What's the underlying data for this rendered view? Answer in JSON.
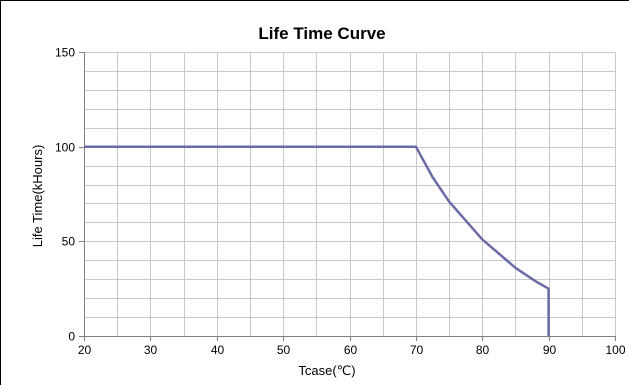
{
  "chart_data": {
    "type": "line",
    "title": "Life Time Curve",
    "xlabel": "Tcase(℃)",
    "ylabel": "Life Time(kHours)",
    "xlim": [
      20,
      100
    ],
    "ylim": [
      0,
      150
    ],
    "x_major_ticks": [
      "20",
      "30",
      "40",
      "50",
      "60",
      "70",
      "80",
      "90",
      "100"
    ],
    "y_major_ticks": [
      "0",
      "50",
      "100",
      "150"
    ],
    "x_minor_step": 5,
    "y_minor_step": 10,
    "grid": true,
    "legend": "none",
    "series": [
      {
        "color": "#6b6ba8",
        "points": [
          {
            "x": 20,
            "y": 100
          },
          {
            "x": 70,
            "y": 100
          },
          {
            "x": 72.5,
            "y": 84
          },
          {
            "x": 75,
            "y": 71
          },
          {
            "x": 80,
            "y": 51
          },
          {
            "x": 85,
            "y": 36
          },
          {
            "x": 88,
            "y": 29
          },
          {
            "x": 90,
            "y": 25
          },
          {
            "x": 90,
            "y": 0
          }
        ]
      }
    ]
  },
  "colors": {
    "grid": "#c8c8c8",
    "axis": "#808080",
    "frame_border": "#000000",
    "series": "#6b6ba8"
  }
}
